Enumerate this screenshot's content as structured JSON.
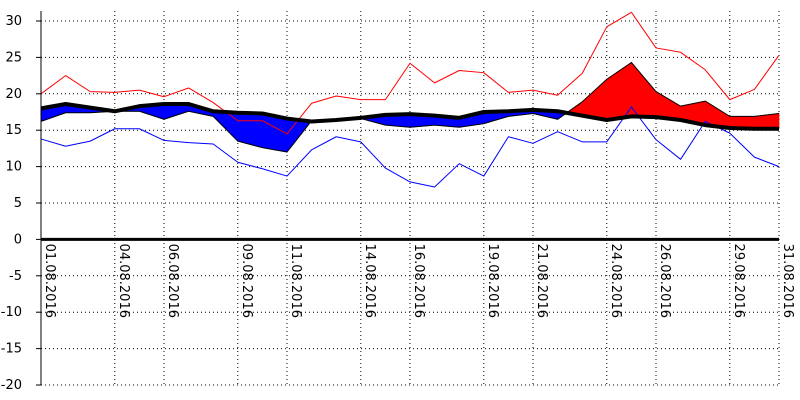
{
  "chart_data": {
    "type": "line",
    "title": "",
    "xlabel": "",
    "ylabel": "",
    "ylim": [
      -20,
      30
    ],
    "yticks": [
      -20,
      -15,
      -10,
      -5,
      0,
      5,
      10,
      15,
      20,
      25,
      30
    ],
    "x_dates": [
      "01.08.2016",
      "02.08.2016",
      "03.08.2016",
      "04.08.2016",
      "05.08.2016",
      "06.08.2016",
      "07.08.2016",
      "08.08.2016",
      "09.08.2016",
      "10.08.2016",
      "11.08.2016",
      "12.08.2016",
      "13.08.2016",
      "14.08.2016",
      "15.08.2016",
      "16.08.2016",
      "17.08.2016",
      "18.08.2016",
      "19.08.2016",
      "20.08.2016",
      "21.08.2016",
      "22.08.2016",
      "23.08.2016",
      "24.08.2016",
      "25.08.2016",
      "26.08.2016",
      "27.08.2016",
      "28.08.2016",
      "29.08.2016",
      "30.08.2016",
      "31.08.2016"
    ],
    "x_tick_labels": [
      "01.08.2016",
      "04.08.2016",
      "06.08.2016",
      "09.08.2016",
      "11.08.2016",
      "14.08.2016",
      "16.08.2016",
      "19.08.2016",
      "21.08.2016",
      "24.08.2016",
      "26.08.2016",
      "29.08.2016",
      "31.08.2016"
    ],
    "grid": true,
    "colors": {
      "max": "#ff0000",
      "min": "#0000ff",
      "warm": "#ff0000",
      "cold": "#0000ff",
      "normal": "#000000",
      "zero": "#000000"
    },
    "series": [
      {
        "key": "max",
        "values": [
          20.0,
          22.5,
          20.3,
          20.2,
          20.5,
          19.6,
          20.8,
          18.8,
          16.3,
          16.3,
          14.5,
          18.7,
          19.7,
          19.2,
          19.2,
          24.2,
          21.5,
          23.2,
          22.9,
          20.2,
          20.5,
          19.8,
          22.8,
          29.2,
          31.2,
          26.3,
          25.7,
          23.3,
          19.2,
          20.6,
          25.3
        ]
      },
      {
        "key": "min",
        "values": [
          13.8,
          12.8,
          13.5,
          15.2,
          15.2,
          13.6,
          13.3,
          13.1,
          10.6,
          9.7,
          8.7,
          12.3,
          14.1,
          13.4,
          9.8,
          7.9,
          7.2,
          10.4,
          8.7,
          14.1,
          13.2,
          14.8,
          13.4,
          13.4,
          18.2,
          13.7,
          11.0,
          16.2,
          14.6,
          11.3,
          10.0
        ]
      },
      {
        "key": "mean",
        "values": [
          16.2,
          17.4,
          17.4,
          17.6,
          17.6,
          16.5,
          17.6,
          16.9,
          13.5,
          12.6,
          12.0,
          16.3,
          16.5,
          16.6,
          15.7,
          15.4,
          15.7,
          15.4,
          15.9,
          16.9,
          17.3,
          16.5,
          18.9,
          22.0,
          24.3,
          20.3,
          18.3,
          19.0,
          16.9,
          16.9,
          17.3
        ]
      },
      {
        "key": "normal",
        "values": [
          18.0,
          18.6,
          18.1,
          17.6,
          18.3,
          18.6,
          18.6,
          17.6,
          17.4,
          17.3,
          16.6,
          16.2,
          16.4,
          16.7,
          17.1,
          17.2,
          17.0,
          16.7,
          17.5,
          17.6,
          17.8,
          17.6,
          17.0,
          16.4,
          16.9,
          16.8,
          16.4,
          15.7,
          15.3,
          15.2,
          15.2
        ]
      }
    ]
  }
}
